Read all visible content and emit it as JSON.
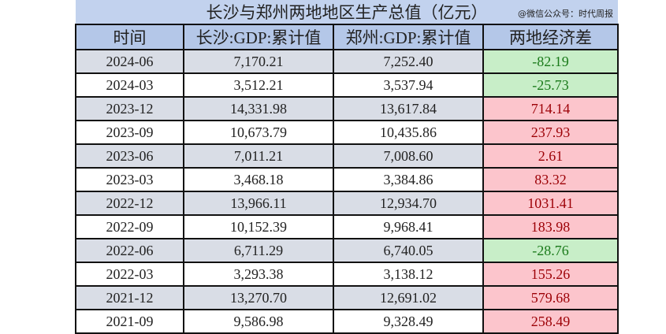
{
  "title": "长沙与郑州两地地区生产总值（亿元）",
  "source": "@微信公众号：时代周报",
  "headers": [
    "时间",
    "长沙:GDP:累计值",
    "郑州:GDP:累计值",
    "两地经济差"
  ],
  "colors": {
    "header_bg": "#b4c7e8",
    "stripe_bg": "#d9dde6",
    "positive_bg": "#fcc5cc",
    "positive_text": "#9c0006",
    "negative_bg": "#c8eec8",
    "negative_text": "#1a7a1a"
  },
  "rows": [
    {
      "date": "2024-06",
      "changsha": "7,170.21",
      "zhengzhou": "7,252.40",
      "diff": "-82.19",
      "sign": "neg"
    },
    {
      "date": "2024-03",
      "changsha": "3,512.21",
      "zhengzhou": "3,537.94",
      "diff": "-25.73",
      "sign": "neg"
    },
    {
      "date": "2023-12",
      "changsha": "14,331.98",
      "zhengzhou": "13,617.84",
      "diff": "714.14",
      "sign": "pos"
    },
    {
      "date": "2023-09",
      "changsha": "10,673.79",
      "zhengzhou": "10,435.86",
      "diff": "237.93",
      "sign": "pos"
    },
    {
      "date": "2023-06",
      "changsha": "7,011.21",
      "zhengzhou": "7,008.60",
      "diff": "2.61",
      "sign": "pos"
    },
    {
      "date": "2023-03",
      "changsha": "3,468.18",
      "zhengzhou": "3,384.86",
      "diff": "83.32",
      "sign": "pos"
    },
    {
      "date": "2022-12",
      "changsha": "13,966.11",
      "zhengzhou": "12,934.70",
      "diff": "1031.41",
      "sign": "pos"
    },
    {
      "date": "2022-09",
      "changsha": "10,152.39",
      "zhengzhou": "9,968.41",
      "diff": "183.98",
      "sign": "pos"
    },
    {
      "date": "2022-06",
      "changsha": "6,711.29",
      "zhengzhou": "6,740.05",
      "diff": "-28.76",
      "sign": "neg"
    },
    {
      "date": "2022-03",
      "changsha": "3,293.38",
      "zhengzhou": "3,138.12",
      "diff": "155.26",
      "sign": "pos"
    },
    {
      "date": "2021-12",
      "changsha": "13,270.70",
      "zhengzhou": "12,691.02",
      "diff": "579.68",
      "sign": "pos"
    },
    {
      "date": "2021-09",
      "changsha": "9,586.98",
      "zhengzhou": "9,328.49",
      "diff": "258.49",
      "sign": "pos"
    }
  ]
}
